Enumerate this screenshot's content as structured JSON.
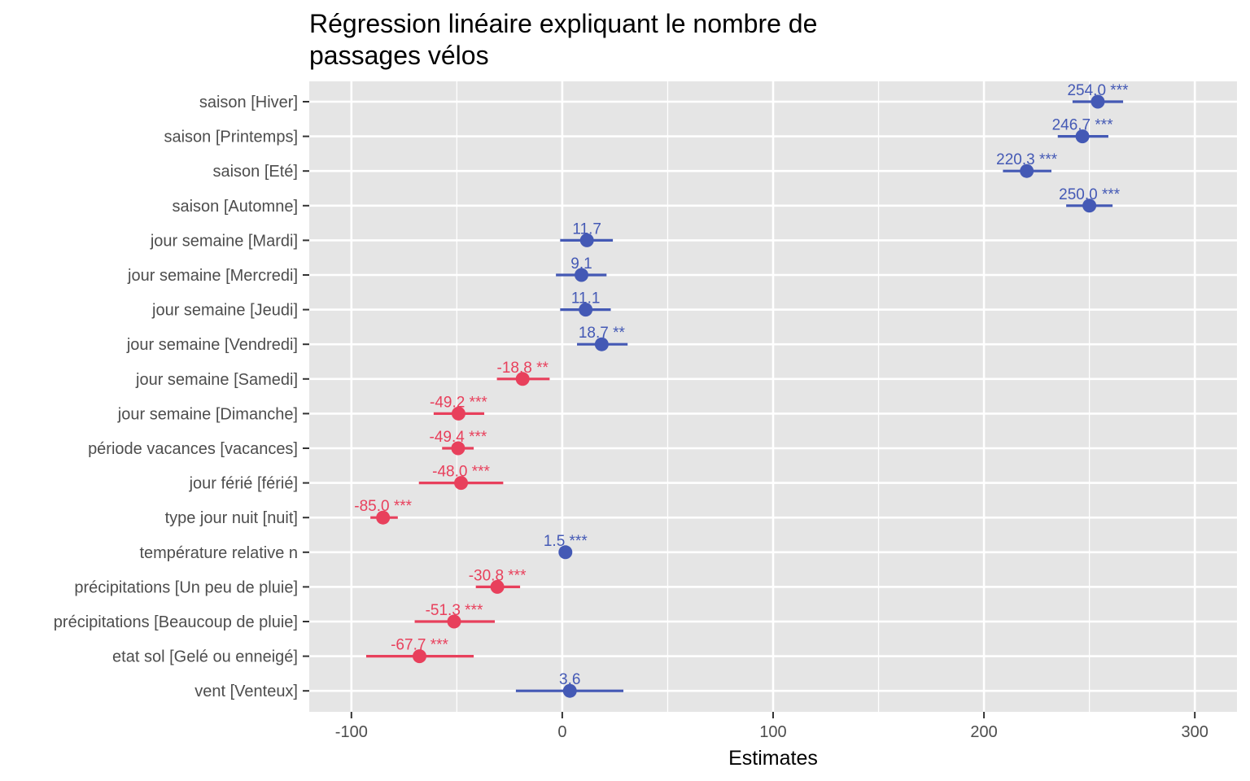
{
  "chart_data": {
    "type": "scatter",
    "subtype": "forest-plot",
    "title": "Régression linéaire expliquant le nombre de passages vélos",
    "title_lines": [
      "Régression linéaire expliquant le nombre de",
      "passages vélos"
    ],
    "xlabel": "Estimates",
    "ylabel": "",
    "xlim": [
      -120,
      320
    ],
    "xticks": [
      -100,
      0,
      100,
      200,
      300
    ],
    "xtick_labels": [
      "-100",
      "0",
      "100",
      "200",
      "300"
    ],
    "grid": true,
    "legend": "none",
    "colors": {
      "positive": "#4459b5",
      "negative": "#e8405c",
      "panel": "#e5e5e5",
      "grid": "#ffffff"
    },
    "terms": [
      {
        "label": "saison [Hiver]",
        "estimate": 254.0,
        "ci_low": 242,
        "ci_high": 266,
        "text": "254.0 ***"
      },
      {
        "label": "saison [Printemps]",
        "estimate": 246.7,
        "ci_low": 235,
        "ci_high": 259,
        "text": "246.7 ***"
      },
      {
        "label": "saison [Eté]",
        "estimate": 220.3,
        "ci_low": 209,
        "ci_high": 232,
        "text": "220.3 ***"
      },
      {
        "label": "saison [Automne]",
        "estimate": 250.0,
        "ci_low": 239,
        "ci_high": 261,
        "text": "250.0 ***"
      },
      {
        "label": "jour semaine [Mardi]",
        "estimate": 11.7,
        "ci_low": -1,
        "ci_high": 24,
        "text": "11.7"
      },
      {
        "label": "jour semaine [Mercredi]",
        "estimate": 9.1,
        "ci_low": -3,
        "ci_high": 21,
        "text": "9.1"
      },
      {
        "label": "jour semaine [Jeudi]",
        "estimate": 11.1,
        "ci_low": -1,
        "ci_high": 23,
        "text": "11.1"
      },
      {
        "label": "jour semaine [Vendredi]",
        "estimate": 18.7,
        "ci_low": 7,
        "ci_high": 31,
        "text": "18.7 **"
      },
      {
        "label": "jour semaine [Samedi]",
        "estimate": -18.8,
        "ci_low": -31,
        "ci_high": -6,
        "text": "-18.8 **"
      },
      {
        "label": "jour semaine [Dimanche]",
        "estimate": -49.2,
        "ci_low": -61,
        "ci_high": -37,
        "text": "-49.2 ***"
      },
      {
        "label": "période vacances [vacances]",
        "estimate": -49.4,
        "ci_low": -57,
        "ci_high": -42,
        "text": "-49.4 ***"
      },
      {
        "label": "jour férié [férié]",
        "estimate": -48.0,
        "ci_low": -68,
        "ci_high": -28,
        "text": "-48.0 ***"
      },
      {
        "label": "type jour nuit [nuit]",
        "estimate": -85.0,
        "ci_low": -91,
        "ci_high": -78,
        "text": "-85.0 ***"
      },
      {
        "label": "température relative n",
        "estimate": 1.5,
        "ci_low": 0.5,
        "ci_high": 2.5,
        "text": "1.5 ***"
      },
      {
        "label": "précipitations [Un peu de pluie]",
        "estimate": -30.8,
        "ci_low": -41,
        "ci_high": -20,
        "text": "-30.8 ***"
      },
      {
        "label": "précipitations [Beaucoup de pluie]",
        "estimate": -51.3,
        "ci_low": -70,
        "ci_high": -32,
        "text": "-51.3 ***"
      },
      {
        "label": "etat sol [Gelé ou enneigé]",
        "estimate": -67.7,
        "ci_low": -93,
        "ci_high": -42,
        "text": "-67.7 ***"
      },
      {
        "label": "vent [Venteux]",
        "estimate": 3.6,
        "ci_low": -22,
        "ci_high": 29,
        "text": "3.6"
      }
    ]
  }
}
